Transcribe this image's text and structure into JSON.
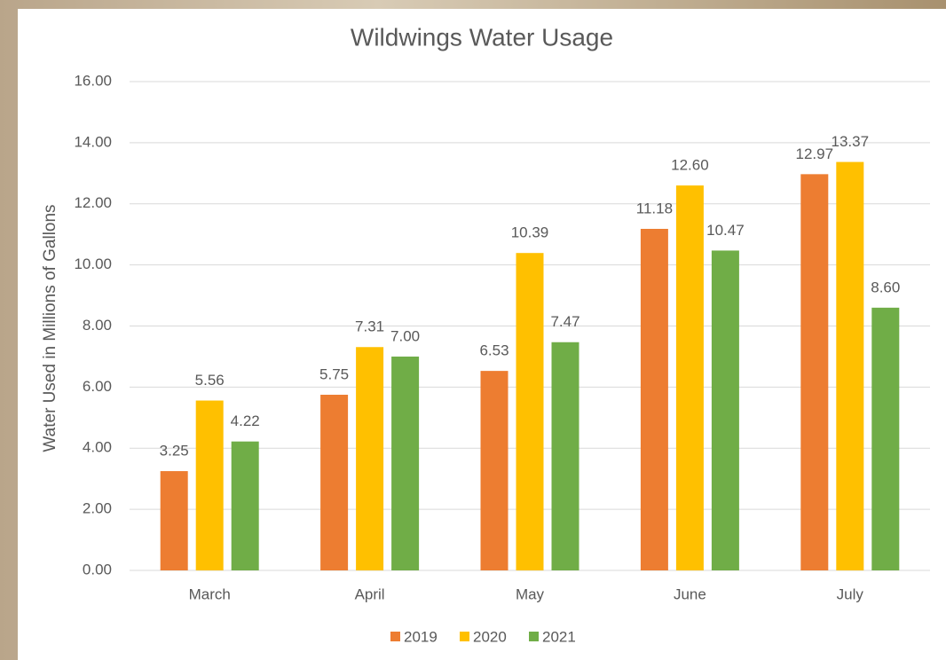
{
  "chart_data": {
    "type": "bar",
    "title": "Wildwings Water Usage",
    "y_label": "Water Used in Millions of Gallons",
    "categories": [
      "March",
      "April",
      "May",
      "June",
      "July"
    ],
    "series": [
      {
        "name": "2019",
        "color": "#ed7d31",
        "values": [
          3.25,
          5.75,
          6.53,
          11.18,
          12.97
        ],
        "value_labels": [
          "3.25",
          "5.75",
          "6.53",
          "11.18",
          "12.97"
        ]
      },
      {
        "name": "2020",
        "color": "#ffc000",
        "values": [
          5.56,
          7.31,
          10.39,
          12.6,
          13.37
        ],
        "value_labels": [
          "5.56",
          "7.31",
          "10.39",
          "12.60",
          "13.37"
        ]
      },
      {
        "name": "2021",
        "color": "#70ad47",
        "values": [
          4.22,
          7,
          7.47,
          10.47,
          8.6
        ],
        "value_labels": [
          "4.22",
          "7.00",
          "7.47",
          "10.47",
          "8.60"
        ]
      }
    ],
    "ylim": [
      0,
      16
    ],
    "yticks": [
      {
        "value": 0,
        "label": "0.00"
      },
      {
        "value": 2,
        "label": "2.00"
      },
      {
        "value": 4,
        "label": "4.00"
      },
      {
        "value": 6,
        "label": "6.00"
      },
      {
        "value": 8,
        "label": "8.00"
      },
      {
        "value": 10,
        "label": "10.00"
      },
      {
        "value": 12,
        "label": "12.00"
      },
      {
        "value": 14,
        "label": "14.00"
      },
      {
        "value": 16,
        "label": "16.00"
      }
    ],
    "grid": true,
    "legend": "bottom"
  }
}
